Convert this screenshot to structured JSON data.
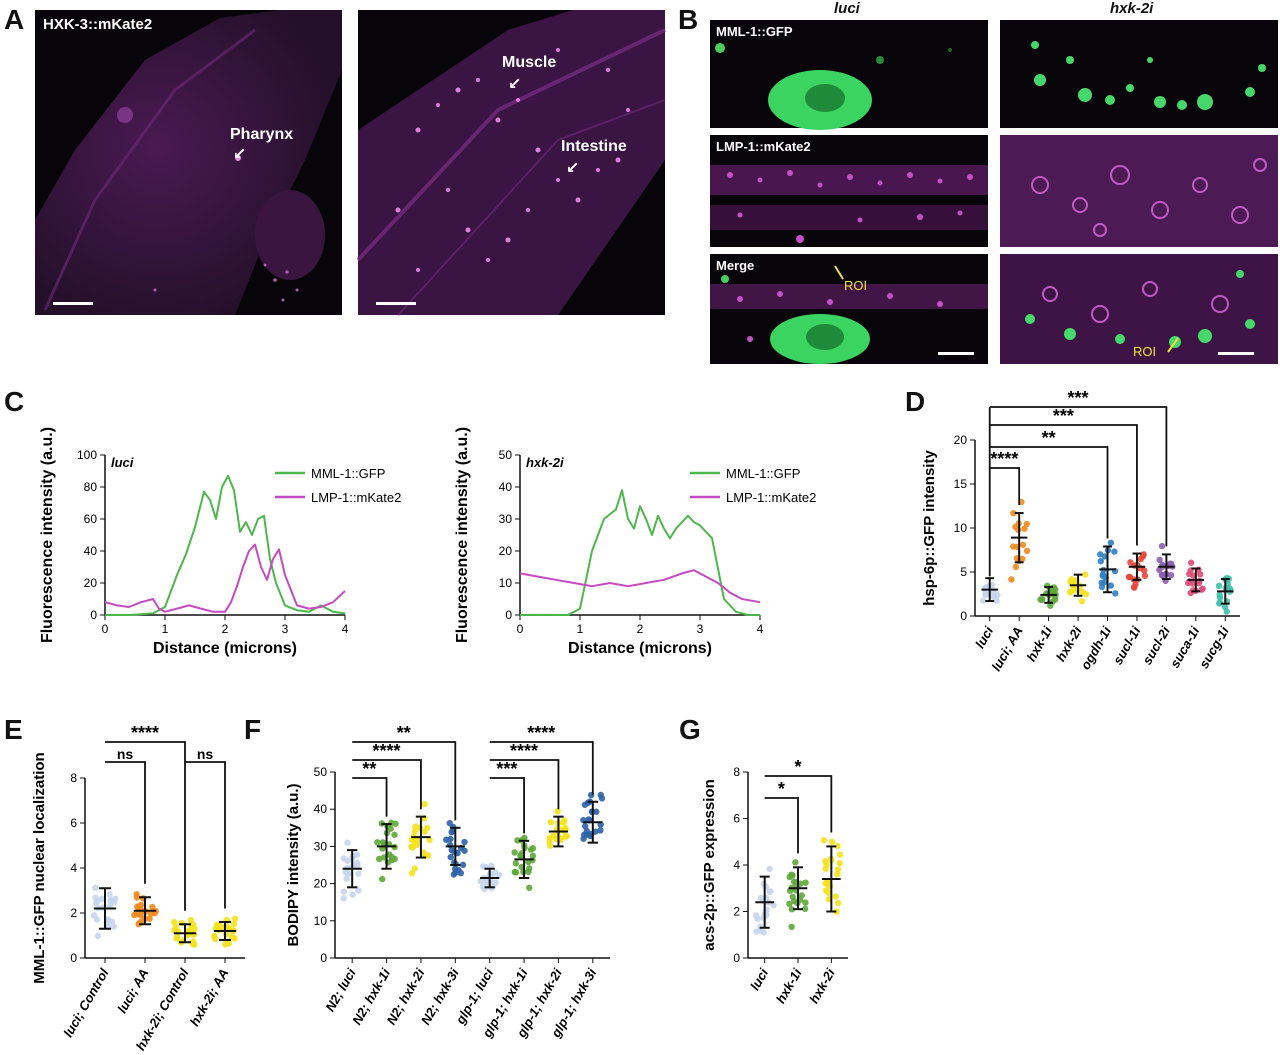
{
  "panels": {
    "A": "A",
    "B": "B",
    "C": "C",
    "D": "D",
    "E": "E",
    "F": "F",
    "G": "G"
  },
  "panelA": {
    "left_label": "HXK-3::mKate2",
    "pharynx": "Pharynx",
    "muscle": "Muscle",
    "intestine": "Intestine"
  },
  "panelB": {
    "col_left": "luci",
    "col_right": "hxk-2i",
    "row1": "MML-1::GFP",
    "row2": "LMP-1::mKate2",
    "row3": "Merge",
    "roi": "ROI"
  },
  "colors": {
    "green": "#4cb849",
    "magenta": "#c64ac4",
    "luci": "#c7d6ee",
    "luciAA": "#f08a1c",
    "hxk1": "#5da83a",
    "hxk2": "#f4e21b",
    "ogdh": "#2f7fc4",
    "sucl1": "#e8463b",
    "sucl2": "#8f5db3",
    "suca": "#e04a77",
    "sucg": "#3fbfad",
    "hxk3": "#2e62a8"
  },
  "chart_data": [
    {
      "id": "C-luci",
      "type": "line",
      "annotation": "luci",
      "xlabel": "Distance (microns)",
      "ylabel": "Fluorescence intensity (a.u.)",
      "xlim": [
        0,
        4
      ],
      "ylim": [
        0,
        100
      ],
      "xticks": [
        "0",
        "1",
        "2",
        "3",
        "4"
      ],
      "yticks": [
        "0",
        "20",
        "40",
        "60",
        "80",
        "100"
      ],
      "legend": "top-right",
      "series": [
        {
          "name": "MML-1::GFP",
          "color": "#4cb849",
          "x": [
            0,
            0.4,
            0.8,
            1.0,
            1.2,
            1.35,
            1.5,
            1.65,
            1.75,
            1.85,
            1.95,
            2.05,
            2.15,
            2.25,
            2.35,
            2.45,
            2.55,
            2.65,
            2.75,
            2.85,
            3.0,
            3.2,
            3.4,
            3.6,
            3.8,
            4.0
          ],
          "y": [
            0,
            0,
            1,
            5,
            25,
            38,
            55,
            77,
            72,
            60,
            80,
            87,
            78,
            52,
            58,
            50,
            60,
            62,
            35,
            20,
            6,
            3,
            2,
            6,
            2,
            1
          ]
        },
        {
          "name": "LMP-1::mKate2",
          "color": "#c64ac4",
          "x": [
            0,
            0.2,
            0.4,
            0.6,
            0.8,
            0.9,
            1.0,
            1.2,
            1.4,
            1.6,
            1.8,
            2.0,
            2.1,
            2.2,
            2.3,
            2.4,
            2.5,
            2.6,
            2.7,
            2.8,
            2.9,
            3.0,
            3.2,
            3.4,
            3.6,
            3.8,
            4.0
          ],
          "y": [
            8,
            6,
            5,
            8,
            10,
            4,
            2,
            4,
            6,
            4,
            2,
            2,
            8,
            18,
            30,
            40,
            44,
            30,
            22,
            35,
            41,
            25,
            6,
            4,
            5,
            8,
            15
          ]
        }
      ]
    },
    {
      "id": "C-hxk2i",
      "type": "line",
      "annotation": "hxk-2i",
      "xlabel": "Distance (microns)",
      "ylabel": "Fluorescence intensity (a.u.)",
      "xlim": [
        0,
        4
      ],
      "ylim": [
        0,
        50
      ],
      "xticks": [
        "0",
        "1",
        "2",
        "3",
        "4"
      ],
      "yticks": [
        "0",
        "10",
        "20",
        "30",
        "40",
        "50"
      ],
      "legend": "top-right",
      "series": [
        {
          "name": "MML-1::GFP",
          "color": "#4cb849",
          "x": [
            0,
            0.4,
            0.8,
            1.0,
            1.2,
            1.4,
            1.6,
            1.7,
            1.8,
            1.9,
            2.0,
            2.1,
            2.2,
            2.3,
            2.4,
            2.5,
            2.6,
            2.7,
            2.8,
            2.9,
            3.0,
            3.2,
            3.4,
            3.6,
            3.8,
            4.0
          ],
          "y": [
            0,
            0,
            0,
            2,
            20,
            30,
            33,
            39,
            30,
            27,
            34,
            30,
            25,
            31,
            27,
            24,
            27,
            29,
            31,
            29,
            28,
            24,
            5,
            1,
            0,
            0
          ]
        },
        {
          "name": "LMP-1::mKate2",
          "color": "#c64ac4",
          "x": [
            0,
            0.3,
            0.6,
            0.9,
            1.2,
            1.5,
            1.8,
            2.1,
            2.4,
            2.7,
            2.9,
            3.1,
            3.3,
            3.5,
            3.7,
            4.0
          ],
          "y": [
            13,
            12,
            11,
            10,
            9,
            10,
            9,
            10,
            11,
            13,
            14,
            12,
            10,
            7,
            5,
            4
          ]
        }
      ]
    },
    {
      "id": "D",
      "type": "scatter",
      "ylabel": "hsp-6p::GFP intensity",
      "ylim": [
        0,
        20
      ],
      "yticks": [
        "0",
        "5",
        "10",
        "15",
        "20"
      ],
      "categories": [
        "luci",
        "luci; AA",
        "hxk-1i",
        "hxk-2i",
        "ogdh-1i",
        "sucl-1i",
        "sucl-2i",
        "suca-1i",
        "sucg-1i"
      ],
      "means": [
        3.0,
        8.9,
        2.4,
        3.5,
        5.3,
        5.6,
        5.6,
        4.1,
        2.8
      ],
      "sd": [
        1.3,
        2.8,
        0.9,
        1.2,
        2.6,
        1.5,
        1.4,
        1.3,
        1.4
      ],
      "significance": [
        {
          "from": "luci",
          "to": "luci; AA",
          "label": "****"
        },
        {
          "from": "luci",
          "to": "ogdh-1i",
          "label": "**"
        },
        {
          "from": "luci",
          "to": "sucl-1i",
          "label": "***"
        },
        {
          "from": "luci",
          "to": "sucl-2i",
          "label": "***"
        }
      ]
    },
    {
      "id": "E",
      "type": "scatter",
      "ylabel": "MML-1::GFP nuclear localization",
      "ylim": [
        0,
        8
      ],
      "yticks": [
        "0",
        "2",
        "4",
        "6",
        "8"
      ],
      "categories": [
        "luci; Control",
        "luci; AA",
        "hxk-2i; Control",
        "hxk-2i; AA"
      ],
      "means": [
        2.2,
        2.1,
        1.1,
        1.2
      ],
      "sd": [
        0.9,
        0.6,
        0.4,
        0.4
      ],
      "significance": [
        {
          "from": "luci; Control",
          "to": "luci; AA",
          "label": "ns"
        },
        {
          "from": "luci; Control",
          "to": "hxk-2i; Control",
          "label": "****"
        },
        {
          "from": "hxk-2i; Control",
          "to": "hxk-2i; AA",
          "label": "ns"
        }
      ]
    },
    {
      "id": "F",
      "type": "scatter",
      "ylabel": "BODIPY intensity (a.u.)",
      "ylim": [
        0,
        50
      ],
      "yticks": [
        "0",
        "10",
        "20",
        "30",
        "40",
        "50"
      ],
      "categories": [
        "N2; luci",
        "N2; hxk-1i",
        "N2; hxk-2i",
        "N2; hxk-3i",
        "glp-1; luci",
        "glp-1; hxk-1i",
        "glp-1; hxk-2i",
        "glp-1; hxk-3i"
      ],
      "means": [
        24,
        30,
        32.5,
        30,
        21.5,
        26.5,
        34,
        36.5
      ],
      "sd": [
        5,
        6,
        5.5,
        5,
        2.5,
        5,
        4,
        5.5
      ],
      "significance": [
        {
          "from": "N2; luci",
          "to": "N2; hxk-1i",
          "label": "**"
        },
        {
          "from": "N2; luci",
          "to": "N2; hxk-2i",
          "label": "****"
        },
        {
          "from": "N2; luci",
          "to": "N2; hxk-3i",
          "label": "**"
        },
        {
          "from": "glp-1; luci",
          "to": "glp-1; hxk-1i",
          "label": "***"
        },
        {
          "from": "glp-1; luci",
          "to": "glp-1; hxk-2i",
          "label": "****"
        },
        {
          "from": "glp-1; luci",
          "to": "glp-1; hxk-3i",
          "label": "****"
        }
      ]
    },
    {
      "id": "G",
      "type": "scatter",
      "ylabel": "acs-2p::GFP expression",
      "ylim": [
        0,
        8
      ],
      "yticks": [
        "0",
        "2",
        "4",
        "6",
        "8"
      ],
      "categories": [
        "luci",
        "hxk-1i",
        "hxk-2i"
      ],
      "means": [
        2.4,
        3.0,
        3.4
      ],
      "sd": [
        1.1,
        0.9,
        1.4
      ],
      "significance": [
        {
          "from": "luci",
          "to": "hxk-1i",
          "label": "*"
        },
        {
          "from": "luci",
          "to": "hxk-2i",
          "label": "*"
        }
      ]
    }
  ]
}
